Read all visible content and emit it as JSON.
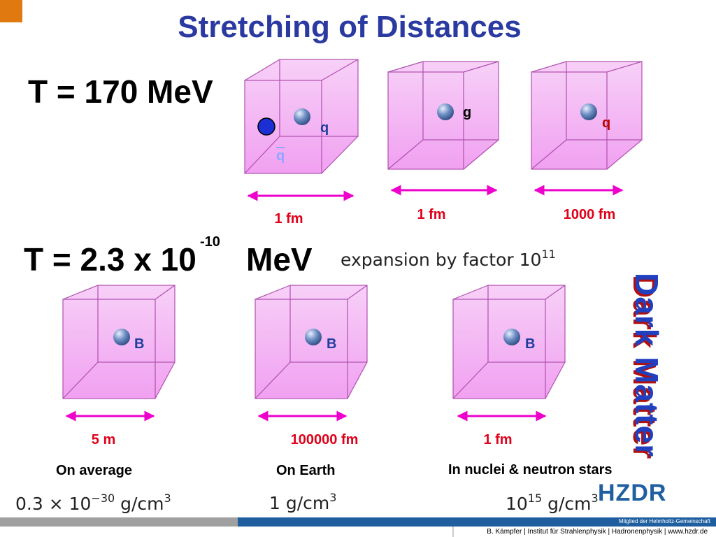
{
  "header": {
    "title": "Stretching of Distances"
  },
  "top": {
    "temperature": "T = 170 MeV",
    "cube_labels": [
      "q",
      "q",
      "g",
      "q"
    ],
    "distances": [
      "1 fm",
      "1 fm",
      "1000 fm"
    ]
  },
  "bottom": {
    "temperature_base": "T = 2.3 x 10",
    "temperature_exponent": "-10",
    "temperature_unit": "MeV",
    "expansion": "expansion by factor 10",
    "expansion_exponent": "11",
    "cube_labels": [
      "B",
      "B",
      "B"
    ],
    "distances": [
      "5 m",
      "100000 fm",
      "1 fm"
    ],
    "places": [
      "On average",
      "On Earth",
      "In nuclei & neutron stars"
    ],
    "densities": [
      {
        "base": "0.3 × 10",
        "exponent": "−30",
        "unit": " g/cm",
        "unit_exponent": "3"
      },
      {
        "base": "1 g/cm",
        "unit_exponent": "3"
      },
      {
        "base": "10",
        "exponent": "15",
        "unit": " g/cm",
        "unit_exponent": "3"
      }
    ]
  },
  "side_label": "Dark Matter",
  "logo": "HZDR",
  "footer": {
    "membership": "Mitglied der Helmholtz-Gemeinschaft",
    "credit": "B. Kämpfer | Institut für Strahlenphysik | Hadronenphysik | www.hzdr.de"
  }
}
